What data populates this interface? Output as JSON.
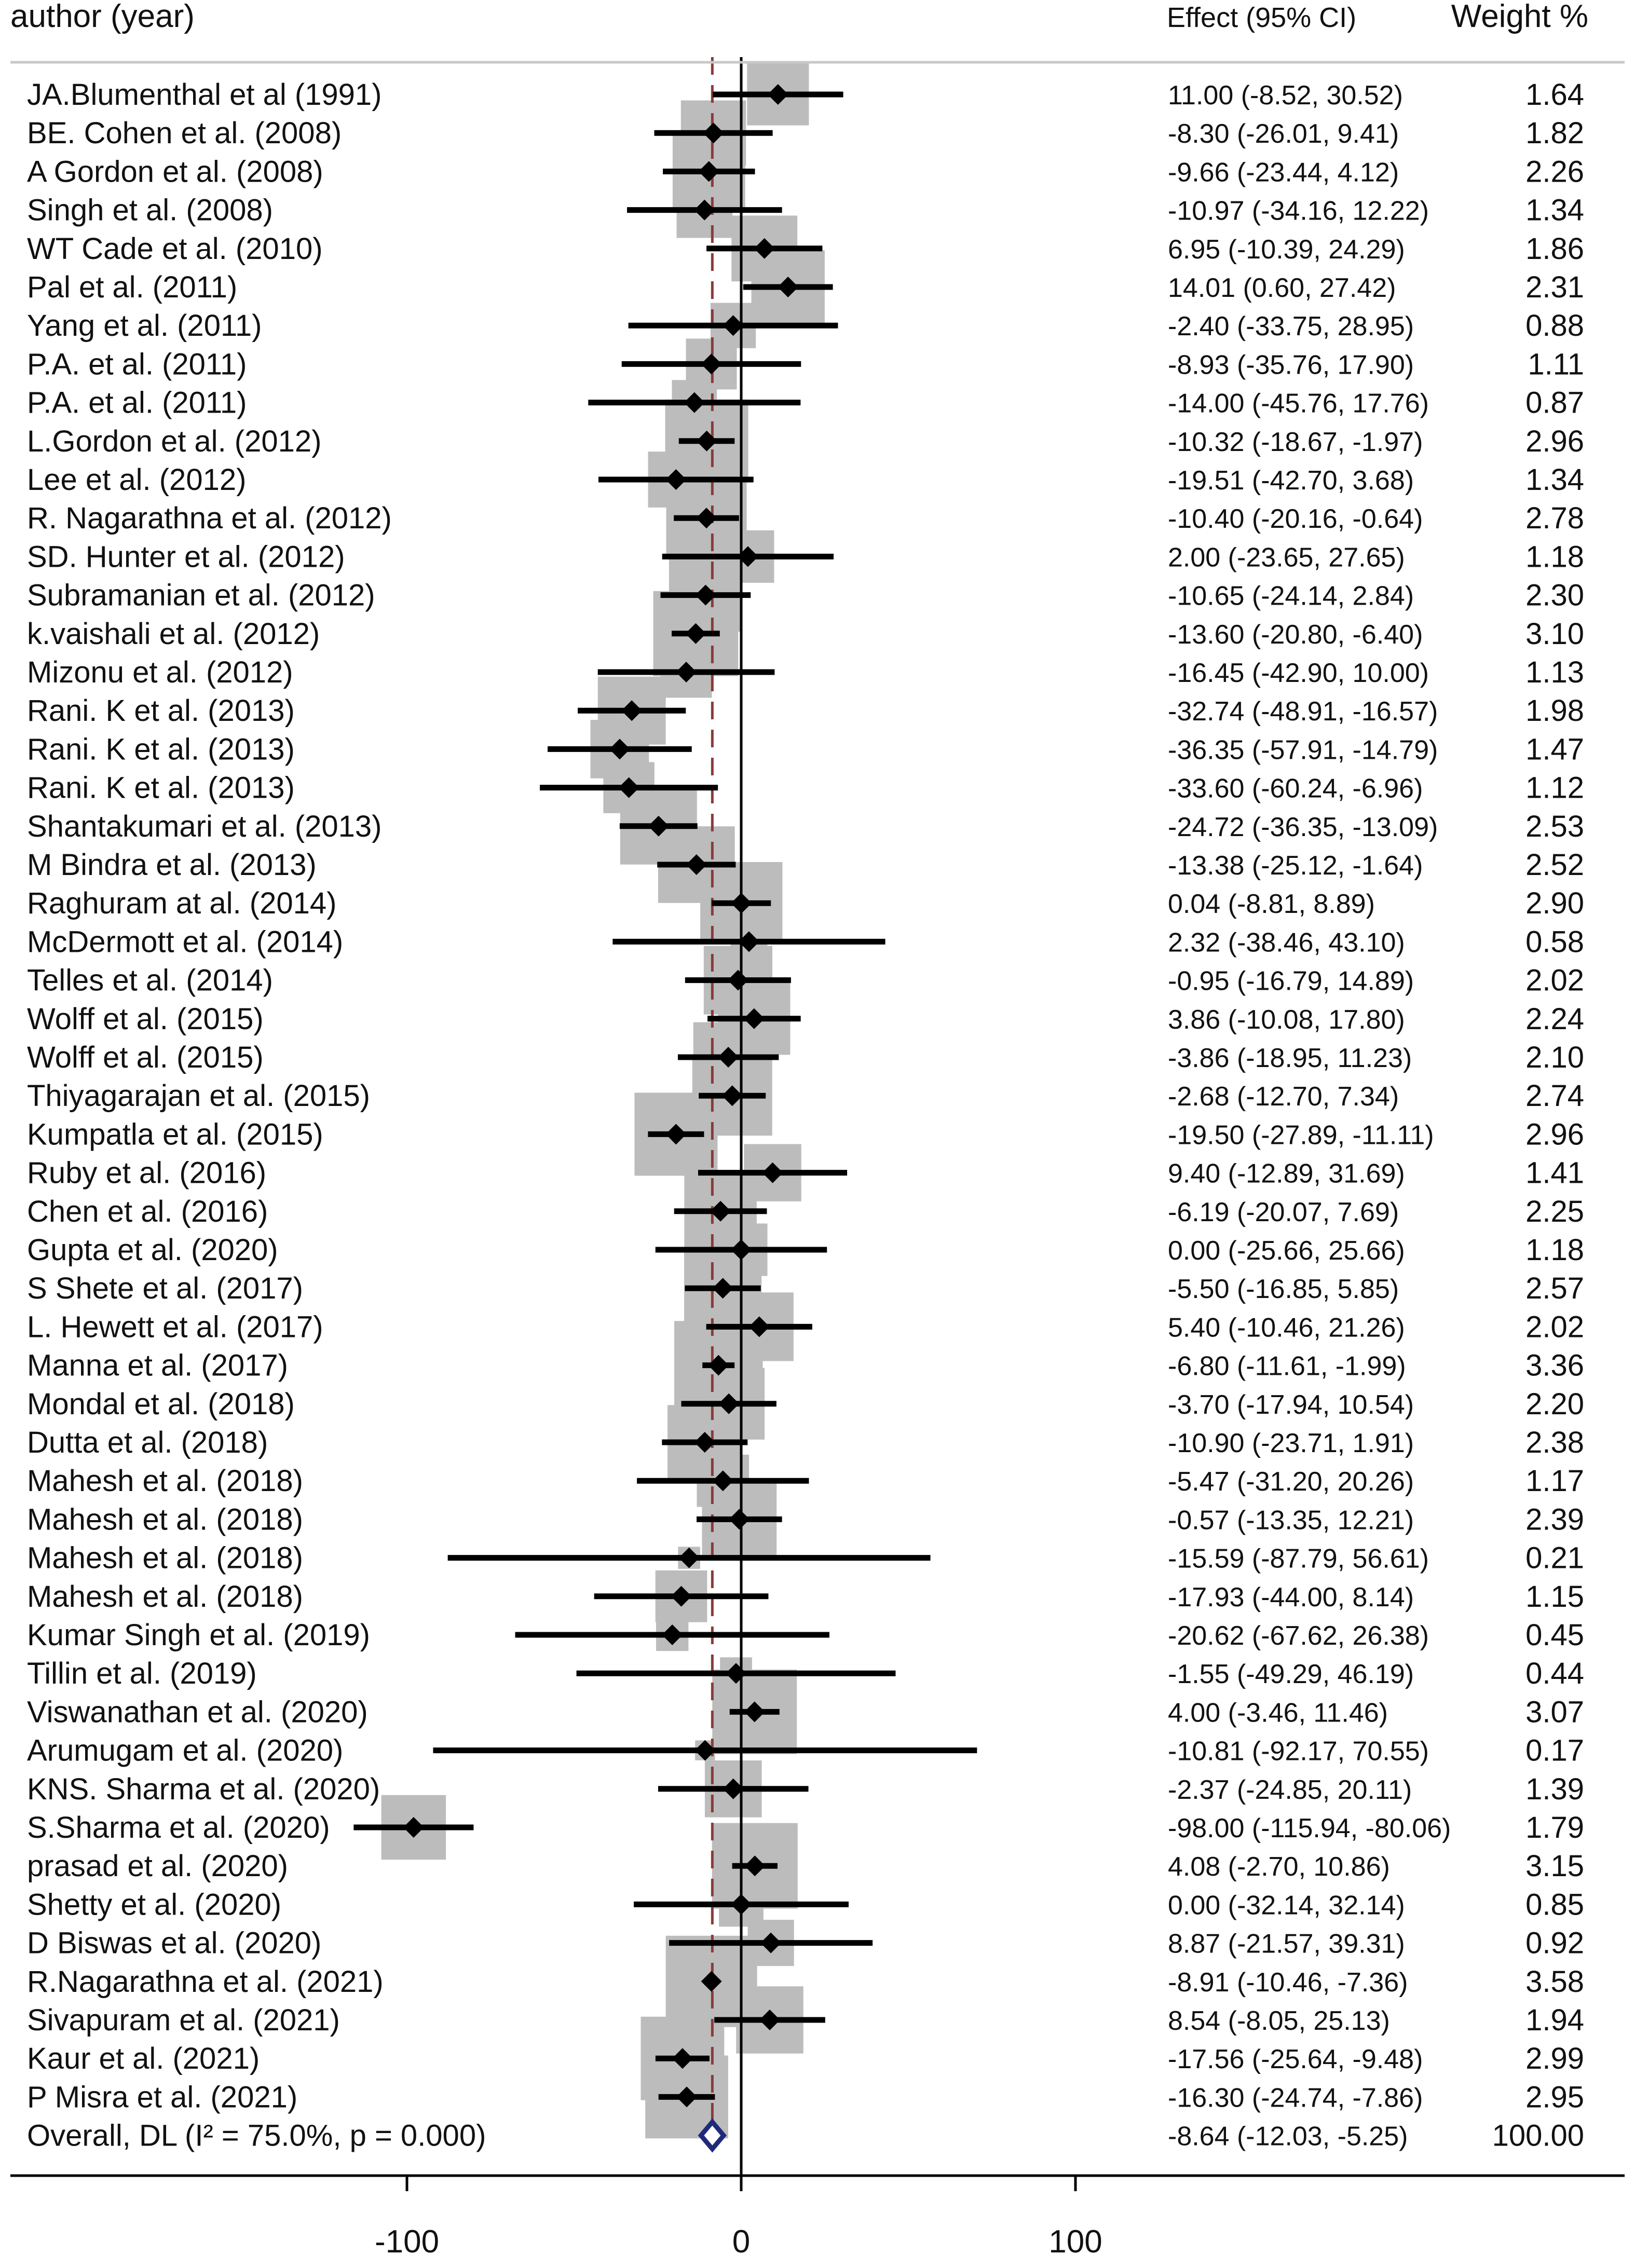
{
  "chart_data": {
    "type": "forest",
    "xlim": [
      -150,
      250
    ],
    "xticks": [
      -100,
      0,
      100
    ],
    "null_line": 0,
    "pooled_line": -8.64,
    "headers": {
      "label": "author (year)",
      "effect": "Effect (95% CI)",
      "weight": "Weight %"
    },
    "studies": [
      {
        "label": "JA.Blumenthal et al (1991)",
        "effect": 11.0,
        "lo": -8.52,
        "hi": 30.52,
        "ci_text": "11.00 (-8.52, 30.52)",
        "weight": 1.64,
        "weight_text": "1.64"
      },
      {
        "label": "BE. Cohen et al. (2008)",
        "effect": -8.3,
        "lo": -26.01,
        "hi": 9.41,
        "ci_text": "-8.30 (-26.01, 9.41)",
        "weight": 1.82,
        "weight_text": "1.82"
      },
      {
        "label": "A Gordon et al. (2008)",
        "effect": -9.66,
        "lo": -23.44,
        "hi": 4.12,
        "ci_text": "-9.66 (-23.44, 4.12)",
        "weight": 2.26,
        "weight_text": "2.26"
      },
      {
        "label": "Singh et al. (2008)",
        "effect": -10.97,
        "lo": -34.16,
        "hi": 12.22,
        "ci_text": "-10.97 (-34.16, 12.22)",
        "weight": 1.34,
        "weight_text": "1.34"
      },
      {
        "label": "WT Cade et al. (2010)",
        "effect": 6.95,
        "lo": -10.39,
        "hi": 24.29,
        "ci_text": "6.95 (-10.39, 24.29)",
        "weight": 1.86,
        "weight_text": "1.86"
      },
      {
        "label": "Pal et al. (2011)",
        "effect": 14.01,
        "lo": 0.6,
        "hi": 27.42,
        "ci_text": "14.01 (0.60, 27.42)",
        "weight": 2.31,
        "weight_text": "2.31"
      },
      {
        "label": "Yang et al. (2011)",
        "effect": -2.4,
        "lo": -33.75,
        "hi": 28.95,
        "ci_text": "-2.40 (-33.75, 28.95)",
        "weight": 0.88,
        "weight_text": "0.88"
      },
      {
        "label": "P.A. et al. (2011)",
        "effect": -8.93,
        "lo": -35.76,
        "hi": 17.9,
        "ci_text": "-8.93 (-35.76, 17.90)",
        "weight": 1.11,
        "weight_text": "1.11"
      },
      {
        "label": "P.A. et al. (2011)",
        "effect": -14.0,
        "lo": -45.76,
        "hi": 17.76,
        "ci_text": "-14.00 (-45.76, 17.76)",
        "weight": 0.87,
        "weight_text": "0.87"
      },
      {
        "label": "L.Gordon et al. (2012)",
        "effect": -10.32,
        "lo": -18.67,
        "hi": -1.97,
        "ci_text": "-10.32 (-18.67, -1.97)",
        "weight": 2.96,
        "weight_text": "2.96"
      },
      {
        "label": "Lee et al. (2012)",
        "effect": -19.51,
        "lo": -42.7,
        "hi": 3.68,
        "ci_text": "-19.51 (-42.70, 3.68)",
        "weight": 1.34,
        "weight_text": "1.34"
      },
      {
        "label": "R. Nagarathna et al. (2012)",
        "effect": -10.4,
        "lo": -20.16,
        "hi": -0.64,
        "ci_text": "-10.40 (-20.16, -0.64)",
        "weight": 2.78,
        "weight_text": "2.78"
      },
      {
        "label": "SD. Hunter et al. (2012)",
        "effect": 2.0,
        "lo": -23.65,
        "hi": 27.65,
        "ci_text": "2.00 (-23.65, 27.65)",
        "weight": 1.18,
        "weight_text": "1.18"
      },
      {
        "label": "Subramanian et al. (2012)",
        "effect": -10.65,
        "lo": -24.14,
        "hi": 2.84,
        "ci_text": "-10.65 (-24.14, 2.84)",
        "weight": 2.3,
        "weight_text": "2.30"
      },
      {
        "label": "k.vaishali et al. (2012)",
        "effect": -13.6,
        "lo": -20.8,
        "hi": -6.4,
        "ci_text": "-13.60 (-20.80, -6.40)",
        "weight": 3.1,
        "weight_text": "3.10"
      },
      {
        "label": "Mizonu et al. (2012)",
        "effect": -16.45,
        "lo": -42.9,
        "hi": 10.0,
        "ci_text": "-16.45 (-42.90, 10.00)",
        "weight": 1.13,
        "weight_text": "1.13"
      },
      {
        "label": "Rani. K et al. (2013)",
        "effect": -32.74,
        "lo": -48.91,
        "hi": -16.57,
        "ci_text": "-32.74 (-48.91, -16.57)",
        "weight": 1.98,
        "weight_text": "1.98"
      },
      {
        "label": "Rani. K et al. (2013)",
        "effect": -36.35,
        "lo": -57.91,
        "hi": -14.79,
        "ci_text": "-36.35 (-57.91, -14.79)",
        "weight": 1.47,
        "weight_text": "1.47"
      },
      {
        "label": "Rani. K et al. (2013)",
        "effect": -33.6,
        "lo": -60.24,
        "hi": -6.96,
        "ci_text": "-33.60 (-60.24, -6.96)",
        "weight": 1.12,
        "weight_text": "1.12"
      },
      {
        "label": "Shantakumari et al. (2013)",
        "effect": -24.72,
        "lo": -36.35,
        "hi": -13.09,
        "ci_text": "-24.72 (-36.35, -13.09)",
        "weight": 2.53,
        "weight_text": "2.53"
      },
      {
        "label": "M Bindra et al. (2013)",
        "effect": -13.38,
        "lo": -25.12,
        "hi": -1.64,
        "ci_text": "-13.38 (-25.12, -1.64)",
        "weight": 2.52,
        "weight_text": "2.52"
      },
      {
        "label": "Raghuram at al. (2014)",
        "effect": 0.04,
        "lo": -8.81,
        "hi": 8.89,
        "ci_text": "0.04 (-8.81, 8.89)",
        "weight": 2.9,
        "weight_text": "2.90"
      },
      {
        "label": "McDermott et al. (2014)",
        "effect": 2.32,
        "lo": -38.46,
        "hi": 43.1,
        "ci_text": "2.32 (-38.46, 43.10)",
        "weight": 0.58,
        "weight_text": "0.58"
      },
      {
        "label": "Telles et al. (2014)",
        "effect": -0.95,
        "lo": -16.79,
        "hi": 14.89,
        "ci_text": "-0.95 (-16.79, 14.89)",
        "weight": 2.02,
        "weight_text": "2.02"
      },
      {
        "label": "Wolff et al. (2015)",
        "effect": 3.86,
        "lo": -10.08,
        "hi": 17.8,
        "ci_text": "3.86 (-10.08, 17.80)",
        "weight": 2.24,
        "weight_text": "2.24"
      },
      {
        "label": "Wolff et al. (2015)",
        "effect": -3.86,
        "lo": -18.95,
        "hi": 11.23,
        "ci_text": "-3.86 (-18.95, 11.23)",
        "weight": 2.1,
        "weight_text": "2.10"
      },
      {
        "label": "Thiyagarajan et al. (2015)",
        "effect": -2.68,
        "lo": -12.7,
        "hi": 7.34,
        "ci_text": "-2.68 (-12.70, 7.34)",
        "weight": 2.74,
        "weight_text": "2.74"
      },
      {
        "label": "Kumpatla et al. (2015)",
        "effect": -19.5,
        "lo": -27.89,
        "hi": -11.11,
        "ci_text": "-19.50 (-27.89, -11.11)",
        "weight": 2.96,
        "weight_text": "2.96"
      },
      {
        "label": "Ruby et al. (2016)",
        "effect": 9.4,
        "lo": -12.89,
        "hi": 31.69,
        "ci_text": "9.40 (-12.89, 31.69)",
        "weight": 1.41,
        "weight_text": "1.41"
      },
      {
        "label": "Chen et al. (2016)",
        "effect": -6.19,
        "lo": -20.07,
        "hi": 7.69,
        "ci_text": "-6.19 (-20.07, 7.69)",
        "weight": 2.25,
        "weight_text": "2.25"
      },
      {
        "label": "Gupta et al. (2020)",
        "effect": 0.0,
        "lo": -25.66,
        "hi": 25.66,
        "ci_text": "0.00 (-25.66, 25.66)",
        "weight": 1.18,
        "weight_text": "1.18"
      },
      {
        "label": "S Shete et al. (2017)",
        "effect": -5.5,
        "lo": -16.85,
        "hi": 5.85,
        "ci_text": "-5.50 (-16.85, 5.85)",
        "weight": 2.57,
        "weight_text": "2.57"
      },
      {
        "label": "L. Hewett et al. (2017)",
        "effect": 5.4,
        "lo": -10.46,
        "hi": 21.26,
        "ci_text": "5.40 (-10.46, 21.26)",
        "weight": 2.02,
        "weight_text": "2.02"
      },
      {
        "label": "Manna et al. (2017)",
        "effect": -6.8,
        "lo": -11.61,
        "hi": -1.99,
        "ci_text": "-6.80 (-11.61, -1.99)",
        "weight": 3.36,
        "weight_text": "3.36"
      },
      {
        "label": "Mondal et al. (2018)",
        "effect": -3.7,
        "lo": -17.94,
        "hi": 10.54,
        "ci_text": "-3.70 (-17.94, 10.54)",
        "weight": 2.2,
        "weight_text": "2.20"
      },
      {
        "label": "Dutta et al. (2018)",
        "effect": -10.9,
        "lo": -23.71,
        "hi": 1.91,
        "ci_text": "-10.90 (-23.71, 1.91)",
        "weight": 2.38,
        "weight_text": "2.38"
      },
      {
        "label": "Mahesh et al. (2018)",
        "effect": -5.47,
        "lo": -31.2,
        "hi": 20.26,
        "ci_text": "-5.47 (-31.20, 20.26)",
        "weight": 1.17,
        "weight_text": "1.17"
      },
      {
        "label": "Mahesh et al. (2018)",
        "effect": -0.57,
        "lo": -13.35,
        "hi": 12.21,
        "ci_text": "-0.57 (-13.35, 12.21)",
        "weight": 2.39,
        "weight_text": "2.39"
      },
      {
        "label": "Mahesh et al. (2018)",
        "effect": -15.59,
        "lo": -87.79,
        "hi": 56.61,
        "ci_text": "-15.59 (-87.79, 56.61)",
        "weight": 0.21,
        "weight_text": "0.21"
      },
      {
        "label": "Mahesh et al. (2018)",
        "effect": -17.93,
        "lo": -44.0,
        "hi": 8.14,
        "ci_text": "-17.93 (-44.00, 8.14)",
        "weight": 1.15,
        "weight_text": "1.15"
      },
      {
        "label": "Kumar Singh et al. (2019)",
        "effect": -20.62,
        "lo": -67.62,
        "hi": 26.38,
        "ci_text": "-20.62 (-67.62, 26.38)",
        "weight": 0.45,
        "weight_text": "0.45"
      },
      {
        "label": "Tillin et al. (2019)",
        "effect": -1.55,
        "lo": -49.29,
        "hi": 46.19,
        "ci_text": "-1.55 (-49.29, 46.19)",
        "weight": 0.44,
        "weight_text": "0.44"
      },
      {
        "label": "Viswanathan et al. (2020)",
        "effect": 4.0,
        "lo": -3.46,
        "hi": 11.46,
        "ci_text": "4.00 (-3.46, 11.46)",
        "weight": 3.07,
        "weight_text": "3.07"
      },
      {
        "label": "Arumugam et al. (2020)",
        "effect": -10.81,
        "lo": -92.17,
        "hi": 70.55,
        "ci_text": "-10.81 (-92.17, 70.55)",
        "weight": 0.17,
        "weight_text": "0.17"
      },
      {
        "label": "KNS. Sharma et al. (2020)",
        "effect": -2.37,
        "lo": -24.85,
        "hi": 20.11,
        "ci_text": "-2.37 (-24.85, 20.11)",
        "weight": 1.39,
        "weight_text": "1.39"
      },
      {
        "label": "S.Sharma et al. (2020)",
        "effect": -98.0,
        "lo": -115.94,
        "hi": -80.06,
        "ci_text": "-98.00 (-115.94, -80.06)",
        "weight": 1.79,
        "weight_text": "1.79"
      },
      {
        "label": "prasad et al. (2020)",
        "effect": 4.08,
        "lo": -2.7,
        "hi": 10.86,
        "ci_text": "4.08 (-2.70, 10.86)",
        "weight": 3.15,
        "weight_text": "3.15"
      },
      {
        "label": "Shetty et al. (2020)",
        "effect": 0.0,
        "lo": -32.14,
        "hi": 32.14,
        "ci_text": "0.00 (-32.14, 32.14)",
        "weight": 0.85,
        "weight_text": "0.85"
      },
      {
        "label": "D Biswas et al. (2020)",
        "effect": 8.87,
        "lo": -21.57,
        "hi": 39.31,
        "ci_text": "8.87 (-21.57, 39.31)",
        "weight": 0.92,
        "weight_text": "0.92"
      },
      {
        "label": "R.Nagarathna et al. (2021)",
        "effect": -8.91,
        "lo": -10.46,
        "hi": -7.36,
        "ci_text": "-8.91 (-10.46, -7.36)",
        "weight": 3.58,
        "weight_text": "3.58"
      },
      {
        "label": "Sivapuram et al. (2021)",
        "effect": 8.54,
        "lo": -8.05,
        "hi": 25.13,
        "ci_text": "8.54 (-8.05, 25.13)",
        "weight": 1.94,
        "weight_text": "1.94"
      },
      {
        "label": "Kaur et al. (2021)",
        "effect": -17.56,
        "lo": -25.64,
        "hi": -9.48,
        "ci_text": "-17.56 (-25.64, -9.48)",
        "weight": 2.99,
        "weight_text": "2.99"
      },
      {
        "label": "P Misra et al. (2021)",
        "effect": -16.3,
        "lo": -24.74,
        "hi": -7.86,
        "ci_text": "-16.30 (-24.74, -7.86)",
        "weight": 2.95,
        "weight_text": "2.95"
      }
    ],
    "overall": {
      "label": "Overall, DL (I² = 75.0%, p = 0.000)",
      "effect": -8.64,
      "lo": -12.03,
      "hi": -5.25,
      "ci_text": "-8.64 (-12.03, -5.25)",
      "weight_text": "100.00"
    },
    "colors": {
      "box": "#bcbcbc",
      "marker": "#000000",
      "pooled_line": "#8b3a3a",
      "overall_diamond": "#1f2a7a"
    }
  }
}
